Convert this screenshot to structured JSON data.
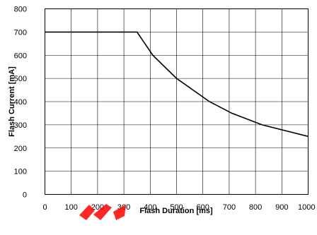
{
  "chart_data": {
    "type": "line",
    "xlabel": "Flash Duration [ms]",
    "ylabel": "Flash Current [mA]",
    "xlim": [
      0,
      1000
    ],
    "ylim": [
      0,
      800
    ],
    "xticks": [
      0,
      100,
      200,
      300,
      400,
      500,
      600,
      700,
      800,
      900,
      1000
    ],
    "yticks": [
      0,
      100,
      200,
      300,
      400,
      500,
      600,
      700,
      800
    ],
    "grid": true,
    "series": [
      {
        "x": [
          0,
          350,
          410,
          500,
          625,
          710,
          825,
          1000
        ],
        "y": [
          700,
          700,
          600,
          500,
          400,
          350,
          300,
          250
        ]
      }
    ],
    "colors": {
      "line": "#000000",
      "grid": "#000000",
      "watermark": "#ff0000"
    }
  }
}
